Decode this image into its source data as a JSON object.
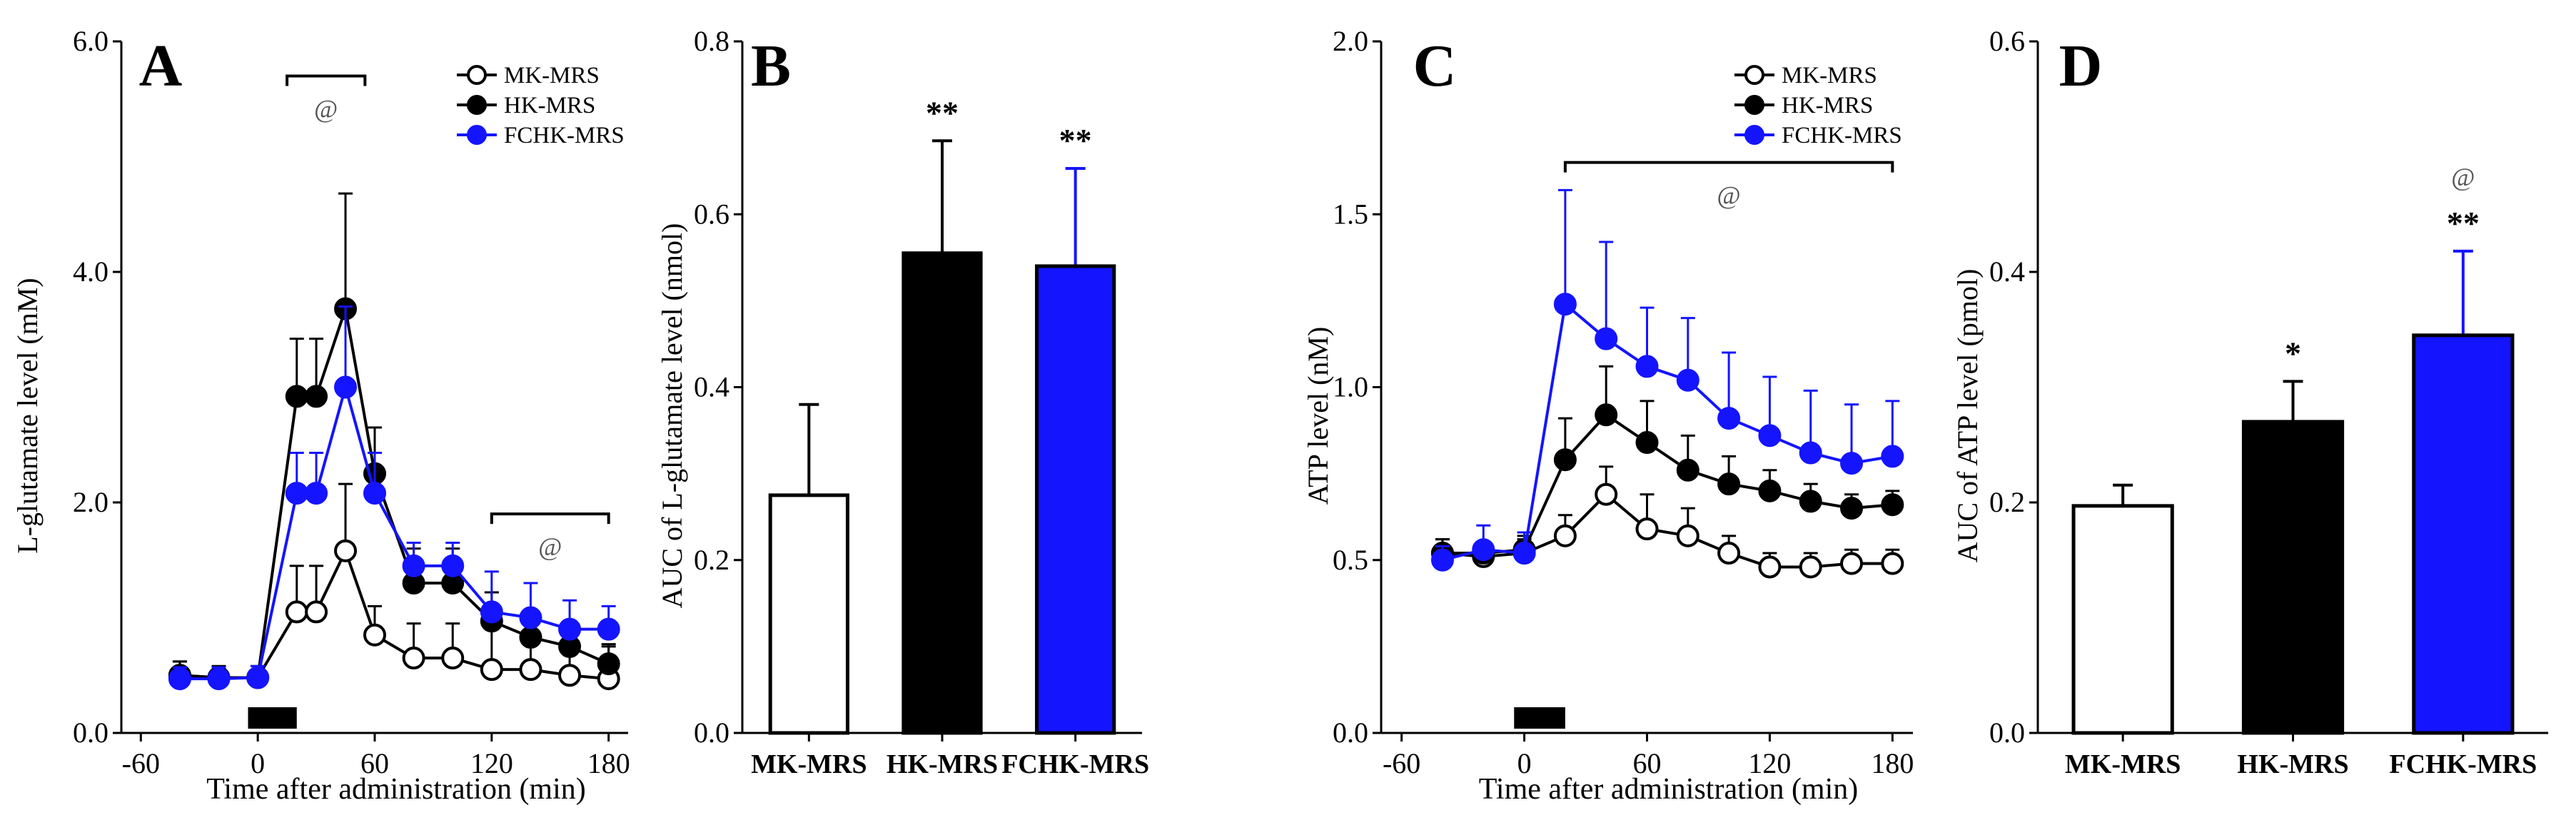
{
  "colors": {
    "mk": "#ffffff",
    "hk": "#000000",
    "fchk": "#1414ff",
    "stroke": "#000000"
  },
  "chart_data": [
    {
      "type": "line",
      "panel": "A",
      "xlabel": "Time after administration (min)",
      "ylabel": "L-glutamate level (mM)",
      "xlim": [
        -70,
        190
      ],
      "ylim": [
        0,
        6.0
      ],
      "xticks": [
        "-60",
        "0",
        "60",
        "120",
        "180"
      ],
      "xtick_values": [
        -60,
        0,
        60,
        120,
        180
      ],
      "yticks": [
        "0.0",
        "2.0",
        "4.0",
        "6.0"
      ],
      "ytick_values": [
        0,
        2,
        4,
        6
      ],
      "x": [
        -40,
        -20,
        0,
        20,
        30,
        45,
        60,
        80,
        100,
        120,
        140,
        160,
        180
      ],
      "series": [
        {
          "name": "MK-MRS",
          "key": "mk",
          "values": [
            0.5,
            0.48,
            0.48,
            1.05,
            1.05,
            1.58,
            0.85,
            0.65,
            0.65,
            0.55,
            0.55,
            0.5,
            0.47
          ],
          "errors": [
            0.12,
            0.1,
            0.1,
            0.4,
            0.4,
            0.58,
            0.25,
            0.3,
            0.3,
            0.35,
            0.32,
            0.3,
            0.3
          ]
        },
        {
          "name": "HK-MRS",
          "key": "hk",
          "values": [
            0.5,
            0.48,
            0.48,
            2.92,
            2.92,
            3.68,
            2.25,
            1.3,
            1.3,
            0.97,
            0.83,
            0.75,
            0.6
          ],
          "errors": [
            0.12,
            0.1,
            0.1,
            0.5,
            0.5,
            1.0,
            0.4,
            0.3,
            0.3,
            0.25,
            0.2,
            0.2,
            0.15
          ]
        },
        {
          "name": "FCHK-MRS",
          "key": "fchk",
          "values": [
            0.47,
            0.47,
            0.48,
            2.08,
            2.08,
            3.0,
            2.08,
            1.45,
            1.45,
            1.05,
            1.0,
            0.9,
            0.9
          ],
          "errors": [
            0.1,
            0.1,
            0.1,
            0.35,
            0.35,
            0.7,
            0.35,
            0.2,
            0.2,
            0.35,
            0.3,
            0.25,
            0.2
          ]
        }
      ],
      "legend": [
        "MK-MRS",
        "HK-MRS",
        "FCHK-MRS"
      ],
      "legend_position": "top-right",
      "dose_bar": [
        -5,
        20
      ],
      "annotations": [
        {
          "text": "@",
          "range": [
            15,
            55
          ],
          "y": 5.7
        },
        {
          "text": "@",
          "range": [
            120,
            180
          ],
          "y": 1.9
        }
      ]
    },
    {
      "type": "bar",
      "panel": "B",
      "ylabel": "AUC of L-glutamate level (nmol)",
      "ylim": [
        0,
        0.8
      ],
      "yticks": [
        "0.0",
        "0.2",
        "0.4",
        "0.6",
        "0.8"
      ],
      "ytick_values": [
        0,
        0.2,
        0.4,
        0.6,
        0.8
      ],
      "categories": [
        "MK-MRS",
        "HK-MRS",
        "FCHK-MRS"
      ],
      "values": [
        0.275,
        0.555,
        0.54
      ],
      "errors": [
        0.105,
        0.13,
        0.113
      ],
      "keys": [
        "mk",
        "hk",
        "fchk"
      ],
      "significance": [
        "",
        "**",
        "**"
      ]
    },
    {
      "type": "line",
      "panel": "C",
      "xlabel": "Time after administration (min)",
      "ylabel": "ATP level (nM)",
      "xlim": [
        -70,
        190
      ],
      "ylim": [
        0,
        2.0
      ],
      "xticks": [
        "-60",
        "0",
        "60",
        "120",
        "180"
      ],
      "xtick_values": [
        -60,
        0,
        60,
        120,
        180
      ],
      "yticks": [
        "0.0",
        "0.5",
        "1.0",
        "1.5",
        "2.0"
      ],
      "ytick_values": [
        0,
        0.5,
        1.0,
        1.5,
        2.0
      ],
      "x": [
        -40,
        -20,
        0,
        20,
        40,
        60,
        80,
        100,
        120,
        140,
        160,
        180
      ],
      "series": [
        {
          "name": "MK-MRS",
          "key": "mk",
          "values": [
            0.52,
            0.51,
            0.52,
            0.57,
            0.69,
            0.59,
            0.57,
            0.52,
            0.48,
            0.48,
            0.49,
            0.49
          ],
          "errors": [
            0.04,
            0.03,
            0.04,
            0.06,
            0.08,
            0.1,
            0.08,
            0.05,
            0.04,
            0.04,
            0.04,
            0.04
          ]
        },
        {
          "name": "HK-MRS",
          "key": "hk",
          "values": [
            0.52,
            0.52,
            0.53,
            0.79,
            0.92,
            0.84,
            0.76,
            0.72,
            0.7,
            0.67,
            0.65,
            0.66
          ],
          "errors": [
            0.04,
            0.03,
            0.04,
            0.12,
            0.14,
            0.12,
            0.1,
            0.08,
            0.06,
            0.05,
            0.04,
            0.04
          ]
        },
        {
          "name": "FCHK-MRS",
          "key": "fchk",
          "values": [
            0.5,
            0.53,
            0.52,
            1.24,
            1.14,
            1.06,
            1.02,
            0.91,
            0.86,
            0.81,
            0.78,
            0.8
          ],
          "errors": [
            0.04,
            0.07,
            0.06,
            0.33,
            0.28,
            0.17,
            0.18,
            0.19,
            0.17,
            0.18,
            0.17,
            0.16
          ]
        }
      ],
      "legend": [
        "MK-MRS",
        "HK-MRS",
        "FCHK-MRS"
      ],
      "legend_position": "top-right",
      "dose_bar": [
        -5,
        20
      ],
      "annotations": [
        {
          "text": "@",
          "range": [
            20,
            180
          ],
          "y": 1.65
        }
      ]
    },
    {
      "type": "bar",
      "panel": "D",
      "ylabel": "AUC of ATP level (pmol)",
      "ylim": [
        0,
        0.6
      ],
      "yticks": [
        "0.0",
        "0.2",
        "0.4",
        "0.6"
      ],
      "ytick_values": [
        0,
        0.2,
        0.4,
        0.6
      ],
      "categories": [
        "MK-MRS",
        "HK-MRS",
        "FCHK-MRS"
      ],
      "values": [
        0.197,
        0.27,
        0.345
      ],
      "errors": [
        0.018,
        0.035,
        0.073
      ],
      "keys": [
        "mk",
        "hk",
        "fchk"
      ],
      "significance": [
        "",
        "*",
        "**"
      ],
      "significance_extra": [
        "",
        "",
        "@"
      ]
    }
  ]
}
